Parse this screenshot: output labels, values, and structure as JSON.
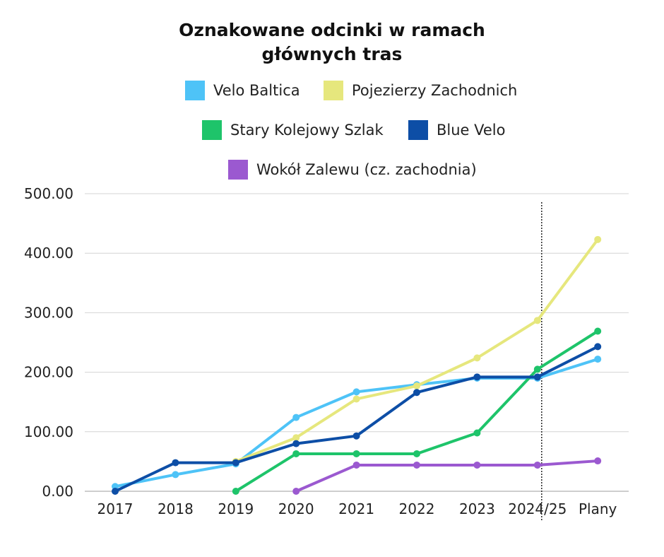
{
  "chart_data": {
    "type": "line",
    "title_lines": [
      "Oznakowane odcinki w ramach",
      "głównych tras"
    ],
    "categories": [
      "2017",
      "2018",
      "2019",
      "2020",
      "2021",
      "2022",
      "2023",
      "2024/25",
      "Plany"
    ],
    "y_tick_labels": [
      "0.00",
      "100.00",
      "200.00",
      "300.00",
      "400.00",
      "500.00"
    ],
    "ylim": [
      0,
      500
    ],
    "grid": true,
    "legend_position": "top",
    "vertical_marker_after": "2024/25",
    "series": [
      {
        "name": "Velo Baltica",
        "color": "#4ec3f7",
        "values": [
          8,
          28,
          46,
          124,
          167,
          179,
          190,
          190,
          222
        ]
      },
      {
        "name": "Pojezierzy Zachodnich",
        "color": "#e6e77d",
        "values": [
          null,
          null,
          50,
          90,
          155,
          177,
          224,
          287,
          423
        ]
      },
      {
        "name": "Stary Kolejowy Szlak",
        "color": "#1ec46a",
        "values": [
          null,
          null,
          0,
          63,
          63,
          63,
          98,
          205,
          269
        ]
      },
      {
        "name": "Blue Velo",
        "color": "#0d4ea6",
        "values": [
          0,
          48,
          48,
          80,
          93,
          166,
          192,
          192,
          243
        ]
      },
      {
        "name": "Wokół Zalewu (cz. zachodnia)",
        "color": "#9b59d0",
        "values": [
          null,
          null,
          null,
          0,
          44,
          44,
          44,
          44,
          51
        ]
      }
    ]
  }
}
